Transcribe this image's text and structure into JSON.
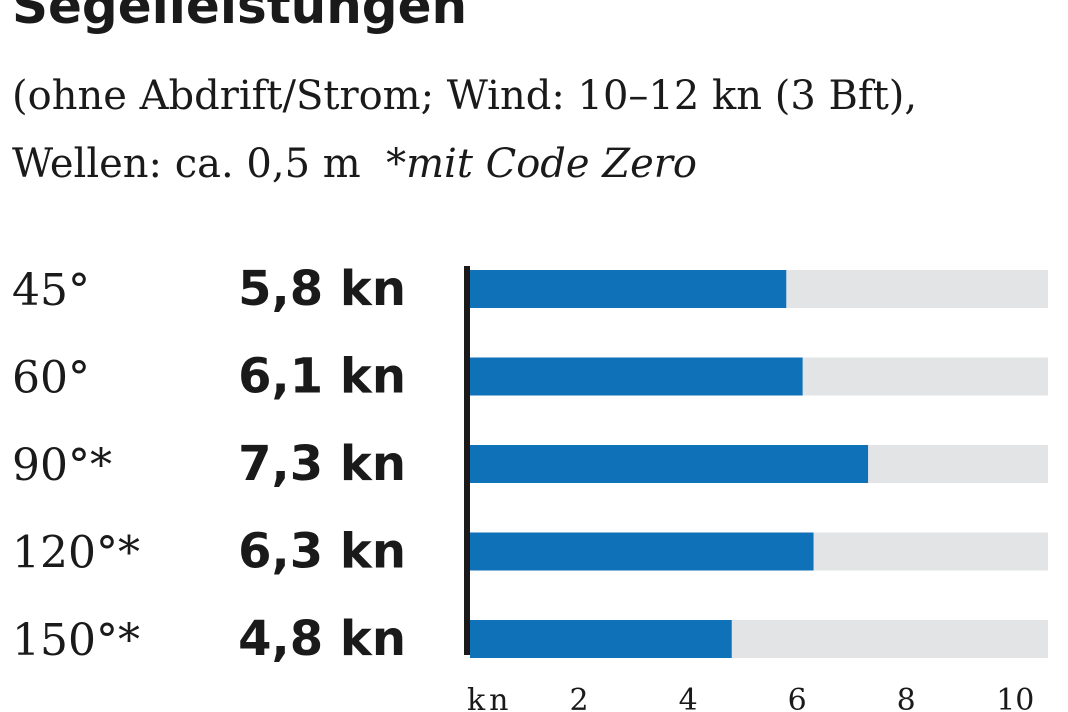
{
  "header": {
    "title": "Segelleistungen",
    "subtitle_line1": "(ohne Abdrift/Strom; Wind: 10–12 kn (3 Bft),",
    "subtitle_line2": "Wellen: ca. 0,5 m",
    "subtitle_note": "*mit Code Zero"
  },
  "colors": {
    "bar": "#0f72b9",
    "track": "#e3e4e6",
    "axis": "#1a1a1a"
  },
  "chart_data": {
    "type": "bar",
    "orientation": "horizontal",
    "categories": [
      "45°",
      "60°",
      "90°*",
      "120°*",
      "150°*"
    ],
    "values": [
      5.8,
      6.1,
      7.3,
      6.3,
      4.8
    ],
    "value_labels": [
      "5,8 kn",
      "6,1 kn",
      "7,3 kn",
      "6,3 kn",
      "4,8 kn"
    ],
    "xlabel": "kn",
    "xlim": [
      0,
      10.6
    ],
    "xticks": [
      2,
      4,
      6,
      8,
      10
    ],
    "xtick_labels": [
      "2",
      "4",
      "6",
      "8",
      "10"
    ],
    "grid": false,
    "legend": "none"
  }
}
